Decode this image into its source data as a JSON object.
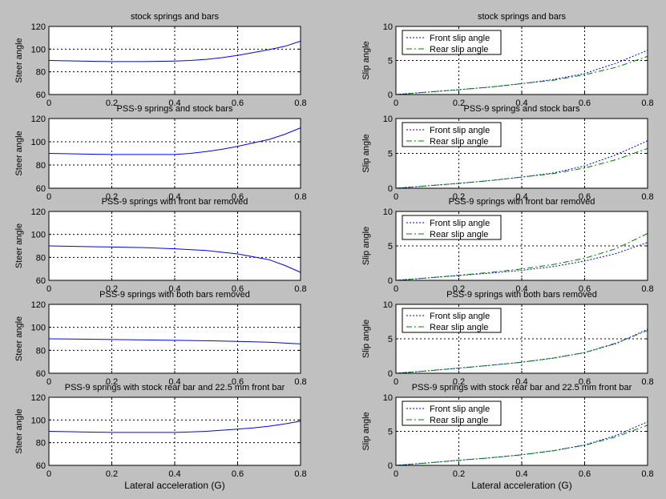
{
  "figure": {
    "background": "#c0c0c0",
    "axes_background": "#ffffff"
  },
  "colors": {
    "front": "#0000ff",
    "rear": "#008000",
    "steer": "#0000ff"
  },
  "chart_data": [
    {
      "type": "line",
      "title": "stock springs and bars",
      "xlabel": "",
      "ylabel": "Steer angle",
      "xlim": [
        0,
        0.8
      ],
      "ylim": [
        60,
        120
      ],
      "xticks": [
        "0",
        "0.2",
        "0.4",
        "0.6",
        "0.8"
      ],
      "yticks": [
        "60",
        "80",
        "100",
        "120"
      ],
      "grid": true,
      "series": [
        {
          "name": "",
          "color": "#0000ff",
          "style": "solid",
          "x": [
            0,
            0.1,
            0.2,
            0.3,
            0.4,
            0.45,
            0.5,
            0.55,
            0.6,
            0.65,
            0.7,
            0.75,
            0.8
          ],
          "y": [
            90,
            89.5,
            89,
            89,
            89.5,
            90,
            91,
            92.5,
            94.5,
            97,
            99.5,
            102.5,
            107
          ]
        }
      ]
    },
    {
      "type": "line",
      "title": "stock springs and bars",
      "xlabel": "",
      "ylabel": "Slip angle",
      "xlim": [
        0,
        0.8
      ],
      "ylim": [
        0,
        10
      ],
      "xticks": [
        "0",
        "0.2",
        "0.4",
        "0.6",
        "0.8"
      ],
      "yticks": [
        "0",
        "5",
        "10"
      ],
      "grid": true,
      "legend": "top-left",
      "series": [
        {
          "name": "Front slip angle",
          "color": "#0000ff",
          "style": "dotted",
          "x": [
            0,
            0.1,
            0.2,
            0.3,
            0.4,
            0.5,
            0.6,
            0.7,
            0.8
          ],
          "y": [
            0,
            0.35,
            0.7,
            1.1,
            1.6,
            2.2,
            3.1,
            4.6,
            6.5
          ]
        },
        {
          "name": "Rear slip angle",
          "color": "#008000",
          "style": "dashdot",
          "x": [
            0,
            0.1,
            0.2,
            0.3,
            0.4,
            0.5,
            0.6,
            0.7,
            0.8
          ],
          "y": [
            0,
            0.35,
            0.7,
            1.1,
            1.6,
            2.1,
            2.9,
            4.0,
            5.6
          ]
        }
      ]
    },
    {
      "type": "line",
      "title": "PSS-9 springs and stock bars",
      "xlabel": "",
      "ylabel": "Steer angle",
      "xlim": [
        0,
        0.8
      ],
      "ylim": [
        60,
        120
      ],
      "xticks": [
        "0",
        "0.2",
        "0.4",
        "0.6",
        "0.8"
      ],
      "yticks": [
        "60",
        "80",
        "100",
        "120"
      ],
      "grid": true,
      "series": [
        {
          "name": "",
          "color": "#0000ff",
          "style": "solid",
          "x": [
            0,
            0.1,
            0.2,
            0.3,
            0.4,
            0.45,
            0.5,
            0.55,
            0.6,
            0.65,
            0.7,
            0.75,
            0.8
          ],
          "y": [
            90,
            89.5,
            89,
            89,
            89,
            90,
            91.5,
            93.5,
            96,
            99,
            102,
            106.5,
            112
          ]
        }
      ]
    },
    {
      "type": "line",
      "title": "PSS-9 springs and stock bars",
      "xlabel": "",
      "ylabel": "Slip angle",
      "xlim": [
        0,
        0.8
      ],
      "ylim": [
        0,
        10
      ],
      "xticks": [
        "0",
        "0.2",
        "0.4",
        "0.6",
        "0.8"
      ],
      "yticks": [
        "0",
        "5",
        "10"
      ],
      "grid": true,
      "legend": "top-left",
      "series": [
        {
          "name": "Front slip angle",
          "color": "#0000ff",
          "style": "dotted",
          "x": [
            0,
            0.1,
            0.2,
            0.3,
            0.4,
            0.5,
            0.6,
            0.7,
            0.8
          ],
          "y": [
            0,
            0.35,
            0.7,
            1.1,
            1.6,
            2.2,
            3.2,
            4.8,
            6.8
          ]
        },
        {
          "name": "Rear slip angle",
          "color": "#008000",
          "style": "dashdot",
          "x": [
            0,
            0.1,
            0.2,
            0.3,
            0.4,
            0.5,
            0.6,
            0.7,
            0.8
          ],
          "y": [
            0,
            0.35,
            0.7,
            1.1,
            1.6,
            2.1,
            2.9,
            4.1,
            5.7
          ]
        }
      ]
    },
    {
      "type": "line",
      "title": "PSS-9 springs with front bar removed",
      "xlabel": "",
      "ylabel": "Steer angle",
      "xlim": [
        0,
        0.8
      ],
      "ylim": [
        60,
        120
      ],
      "xticks": [
        "0",
        "0.2",
        "0.4",
        "0.6",
        "0.8"
      ],
      "yticks": [
        "60",
        "80",
        "100",
        "120"
      ],
      "grid": true,
      "series": [
        {
          "name": "",
          "color": "#0000ff",
          "style": "solid",
          "x": [
            0,
            0.1,
            0.2,
            0.3,
            0.4,
            0.5,
            0.6,
            0.7,
            0.75,
            0.8
          ],
          "y": [
            90,
            89.5,
            89,
            88.5,
            87.5,
            86,
            83,
            78,
            73,
            67
          ]
        }
      ]
    },
    {
      "type": "line",
      "title": "PSS-9 springs with front bar removed",
      "xlabel": "",
      "ylabel": "Slip angle",
      "xlim": [
        0,
        0.8
      ],
      "ylim": [
        0,
        10
      ],
      "xticks": [
        "0",
        "0.2",
        "0.4",
        "0.6",
        "0.8"
      ],
      "yticks": [
        "0",
        "5",
        "10"
      ],
      "grid": true,
      "legend": "top-left",
      "series": [
        {
          "name": "Front slip angle",
          "color": "#0000ff",
          "style": "dotted",
          "x": [
            0,
            0.1,
            0.2,
            0.3,
            0.4,
            0.5,
            0.6,
            0.7,
            0.8
          ],
          "y": [
            0,
            0.35,
            0.7,
            1.05,
            1.45,
            2.0,
            2.8,
            3.9,
            5.5
          ]
        },
        {
          "name": "Rear slip angle",
          "color": "#008000",
          "style": "dashdot",
          "x": [
            0,
            0.1,
            0.2,
            0.3,
            0.4,
            0.5,
            0.6,
            0.7,
            0.8
          ],
          "y": [
            0,
            0.35,
            0.75,
            1.15,
            1.65,
            2.3,
            3.2,
            4.6,
            6.8
          ]
        }
      ]
    },
    {
      "type": "line",
      "title": "PSS-9 springs with both bars removed",
      "xlabel": "",
      "ylabel": "Steer angle",
      "xlim": [
        0,
        0.8
      ],
      "ylim": [
        60,
        120
      ],
      "xticks": [
        "0",
        "0.2",
        "0.4",
        "0.6",
        "0.8"
      ],
      "yticks": [
        "60",
        "80",
        "100",
        "120"
      ],
      "grid": true,
      "series": [
        {
          "name": "",
          "color": "#0000ff",
          "style": "solid",
          "x": [
            0,
            0.1,
            0.2,
            0.3,
            0.4,
            0.5,
            0.6,
            0.7,
            0.8
          ],
          "y": [
            90,
            89.7,
            89.4,
            89,
            88.7,
            88.3,
            87.8,
            87,
            85.5
          ]
        }
      ]
    },
    {
      "type": "line",
      "title": "PSS-9 springs with both bars removed",
      "xlabel": "",
      "ylabel": "Slip angle",
      "xlim": [
        0,
        0.8
      ],
      "ylim": [
        0,
        10
      ],
      "xticks": [
        "0",
        "0.2",
        "0.4",
        "0.6",
        "0.8"
      ],
      "yticks": [
        "0",
        "5",
        "10"
      ],
      "grid": true,
      "legend": "top-left",
      "series": [
        {
          "name": "Front slip angle",
          "color": "#0000ff",
          "style": "dotted",
          "x": [
            0,
            0.1,
            0.2,
            0.3,
            0.4,
            0.5,
            0.6,
            0.7,
            0.8
          ],
          "y": [
            0,
            0.35,
            0.75,
            1.15,
            1.6,
            2.2,
            3.0,
            4.3,
            6.4
          ]
        },
        {
          "name": "Rear slip angle",
          "color": "#008000",
          "style": "dashdot",
          "x": [
            0,
            0.1,
            0.2,
            0.3,
            0.4,
            0.5,
            0.6,
            0.7,
            0.8
          ],
          "y": [
            0,
            0.35,
            0.75,
            1.15,
            1.6,
            2.2,
            3.0,
            4.4,
            6.2
          ]
        }
      ]
    },
    {
      "type": "line",
      "title": "PSS-9 springs with stock rear bar and 22.5 mm front bar",
      "xlabel": "Lateral acceleration (G)",
      "ylabel": "Steer angle",
      "xlim": [
        0,
        0.8
      ],
      "ylim": [
        60,
        120
      ],
      "xticks": [
        "0",
        "0.2",
        "0.4",
        "0.6",
        "0.8"
      ],
      "yticks": [
        "60",
        "80",
        "100",
        "120"
      ],
      "grid": true,
      "series": [
        {
          "name": "",
          "color": "#0000ff",
          "style": "solid",
          "x": [
            0,
            0.1,
            0.2,
            0.3,
            0.4,
            0.45,
            0.5,
            0.55,
            0.6,
            0.65,
            0.7,
            0.75,
            0.8
          ],
          "y": [
            90,
            89.5,
            89,
            89,
            89,
            89.5,
            90,
            91,
            92,
            93,
            94.5,
            96.5,
            99
          ]
        }
      ]
    },
    {
      "type": "line",
      "title": "PSS-9 springs with stock rear bar and 22.5 mm front bar",
      "xlabel": "Lateral acceleration (G)",
      "ylabel": "Slip angle",
      "xlim": [
        0,
        0.8
      ],
      "ylim": [
        0,
        10
      ],
      "xticks": [
        "0",
        "0.2",
        "0.4",
        "0.6",
        "0.8"
      ],
      "yticks": [
        "0",
        "5",
        "10"
      ],
      "grid": true,
      "legend": "top-left",
      "series": [
        {
          "name": "Front slip angle",
          "color": "#0000ff",
          "style": "dotted",
          "x": [
            0,
            0.1,
            0.2,
            0.3,
            0.4,
            0.5,
            0.6,
            0.7,
            0.8
          ],
          "y": [
            0,
            0.35,
            0.75,
            1.1,
            1.55,
            2.15,
            3.0,
            4.4,
            6.4
          ]
        },
        {
          "name": "Rear slip angle",
          "color": "#008000",
          "style": "dashdot",
          "x": [
            0,
            0.1,
            0.2,
            0.3,
            0.4,
            0.5,
            0.6,
            0.7,
            0.8
          ],
          "y": [
            0,
            0.35,
            0.75,
            1.1,
            1.55,
            2.15,
            2.95,
            4.2,
            5.9
          ]
        }
      ]
    }
  ]
}
